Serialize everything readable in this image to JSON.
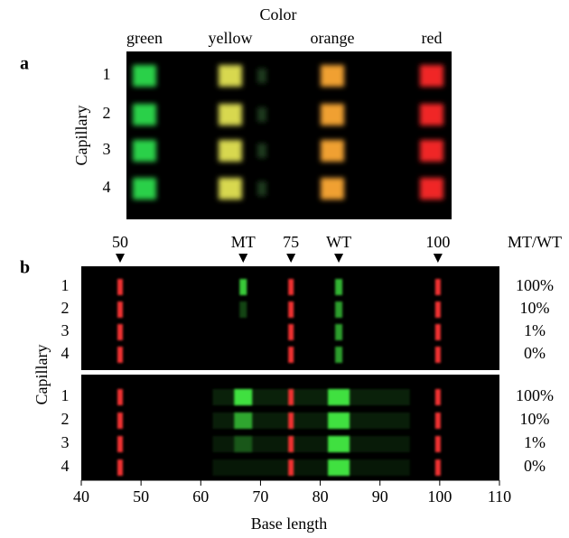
{
  "panel_a": {
    "label": "a",
    "title": "Color",
    "colors": [
      "green",
      "yellow",
      "orange",
      "red"
    ],
    "y_label": "Capillary",
    "capillaries": [
      "1",
      "2",
      "3",
      "4"
    ]
  },
  "panel_b": {
    "label": "b",
    "ratio_title": "MT/WT",
    "y_label": "Capillary",
    "x_label": "Base length",
    "xlim": [
      40,
      110
    ],
    "xticks": [
      40,
      50,
      60,
      70,
      80,
      90,
      100,
      110
    ],
    "markers": [
      {
        "label": "50",
        "x": 46.5
      },
      {
        "label": "MT",
        "x": 67.1
      },
      {
        "label": "75",
        "x": 75.1
      },
      {
        "label": "WT",
        "x": 83.1
      },
      {
        "label": "100",
        "x": 99.7
      }
    ],
    "groups": [
      {
        "capillaries": [
          "1",
          "2",
          "3",
          "4"
        ],
        "ratios": [
          "100%",
          "10%",
          "1%",
          "0%"
        ]
      },
      {
        "capillaries": [
          "1",
          "2",
          "3",
          "4"
        ],
        "ratios": [
          "100%",
          "10%",
          "1%",
          "0%"
        ]
      }
    ]
  }
}
